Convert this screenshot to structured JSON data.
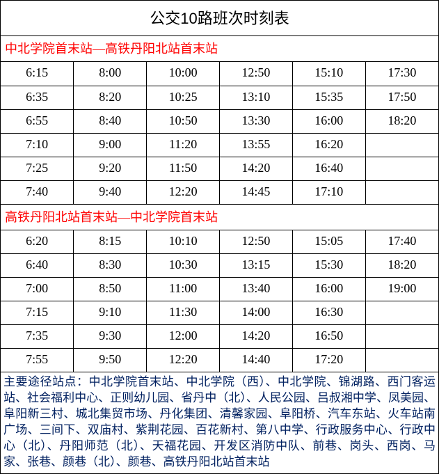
{
  "title": "公交10路班次时刻表",
  "direction1": {
    "label": "中北学院首末站—高铁丹阳北站首末站",
    "rows": [
      [
        "6:15",
        "8:00",
        "10:00",
        "12:50",
        "15:10",
        "17:30"
      ],
      [
        "6:35",
        "8:20",
        "10:25",
        "13:10",
        "15:35",
        "17:50"
      ],
      [
        "6:55",
        "8:40",
        "10:50",
        "13:30",
        "16:00",
        "18:20"
      ],
      [
        "7:10",
        "9:00",
        "11:20",
        "13:55",
        "16:20",
        ""
      ],
      [
        "7:25",
        "9:20",
        "11:50",
        "14:20",
        "16:40",
        ""
      ],
      [
        "7:40",
        "9:40",
        "12:20",
        "14:45",
        "17:10",
        ""
      ]
    ]
  },
  "direction2": {
    "label": "高铁丹阳北站首末站—中北学院首末站",
    "rows": [
      [
        "6:20",
        "8:15",
        "10:10",
        "12:50",
        "15:05",
        "17:40"
      ],
      [
        "6:40",
        "8:30",
        "10:30",
        "13:15",
        "15:30",
        "18:20"
      ],
      [
        "7:00",
        "8:50",
        "11:00",
        "13:40",
        "16:00",
        "19:00"
      ],
      [
        "7:15",
        "9:10",
        "11:30",
        "14:00",
        "16:30",
        ""
      ],
      [
        "7:35",
        "9:30",
        "12:00",
        "14:20",
        "16:50",
        ""
      ],
      [
        "7:55",
        "9:50",
        "12:20",
        "14:40",
        "17:20",
        ""
      ]
    ]
  },
  "footer": "主要途径站点：中北学院首末站、中北学院（西）、中北学院、锦湖路、西门客运站、社会福利中心、正则幼儿园、省丹中（北）、人民公园、吕叔湘中学、凤美园、阜阳新三村、城北集贸市场、丹化集团、清馨家园、阜阳桥、汽车东站、火车站南广场、三间下、双庙村、紫荆花园、百花新村、第八中学、行政服务中心、行政中心（北）、丹阳师范（北）、天福花园、开发区消防中队、前巷、岗头、西岗、马家、张巷、颜巷（北）、颜巷、高铁丹阳北站首末站",
  "colors": {
    "direction_text": "#ff0000",
    "footer_text": "#002060",
    "border": "#000000",
    "background": "#ffffff"
  }
}
